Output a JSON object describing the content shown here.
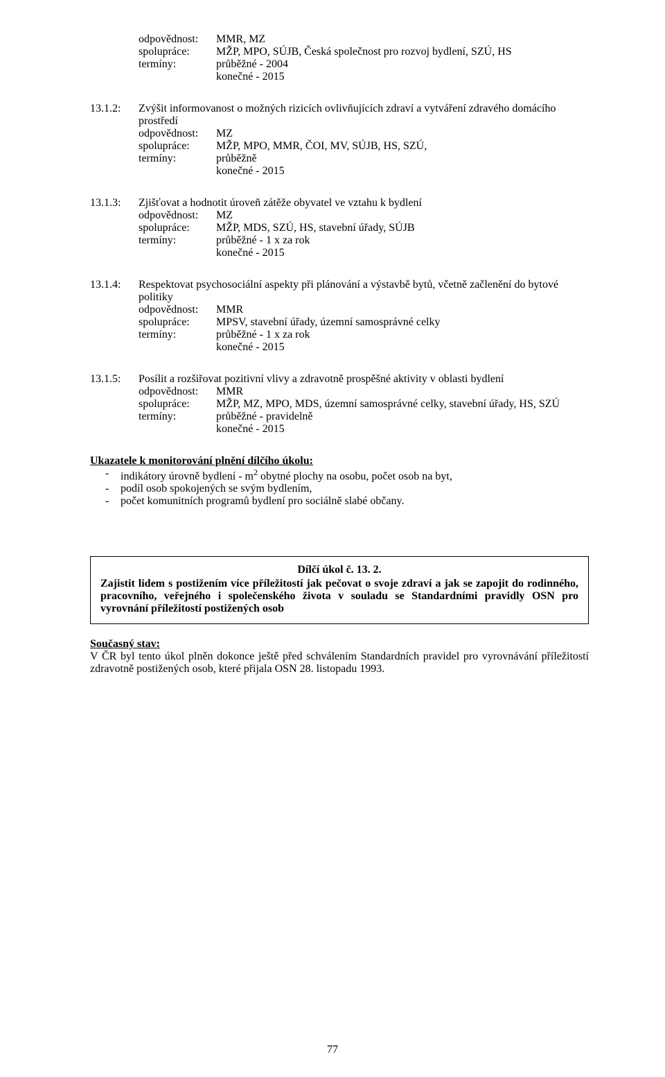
{
  "page_number": "77",
  "top_block": {
    "rows": [
      {
        "label": "odpovědnost:",
        "value": "MMR, MZ"
      },
      {
        "label": "spolupráce:",
        "value": "MŽP, MPO, SÚJB, Česká společnost pro rozvoj bydlení, SZÚ, HS"
      },
      {
        "label": "termíny:",
        "value": "průběžné - 2004"
      }
    ],
    "cont": "konečné - 2015"
  },
  "items": [
    {
      "num": "13.1.2:",
      "lead": "Zvýšit informovanost o možných rizicích ovlivňujících zdraví a vytváření zdravého domácího prostředí",
      "rows": [
        {
          "label": "odpovědnost:",
          "value": "MZ"
        },
        {
          "label": "spolupráce:",
          "value": "MŽP, MPO, MMR, ČOI, MV, SÚJB, HS, SZÚ,"
        },
        {
          "label": "termíny:",
          "value": "průběžně"
        }
      ],
      "cont": "konečné - 2015"
    },
    {
      "num": "13.1.3:",
      "lead": "Zjišťovat a hodnotit úroveň zátěže obyvatel ve vztahu k bydlení",
      "rows": [
        {
          "label": "odpovědnost:",
          "value": "MZ"
        },
        {
          "label": "spolupráce:",
          "value": "MŽP, MDS,  SZÚ, HS, stavební úřady, SÚJB"
        },
        {
          "label": "termíny:",
          "value": "průběžné - 1 x za rok"
        }
      ],
      "cont": "konečné - 2015"
    },
    {
      "num": "13.1.4:",
      "lead": "Respektovat psychosociální aspekty při plánování a výstavbě bytů, včetně začlenění do bytové politiky",
      "rows": [
        {
          "label": "odpovědnost:",
          "value": "MMR"
        },
        {
          "label": "spolupráce:",
          "value": "MPSV, stavební úřady, územní samosprávné celky"
        },
        {
          "label": "termíny:",
          "value": "průběžné - 1 x za rok"
        }
      ],
      "cont": "konečné - 2015"
    },
    {
      "num": "13.1.5:",
      "lead": "Posílit a rozšiřovat pozitivní vlivy a zdravotně prospěšné aktivity v oblasti bydlení",
      "rows": [
        {
          "label": "odpovědnost:",
          "value": "MMR"
        },
        {
          "label": "spolupráce:",
          "value": "MŽP, MZ, MPO, MDS, územní samosprávné celky, stavební úřady, HS, SZÚ"
        },
        {
          "label": "termíny:",
          "value": "průběžné - pravidelně"
        }
      ],
      "cont": "konečné - 2015"
    }
  ],
  "ukazatele": {
    "heading": "Ukazatele k monitorování plnění dílčího úkolu:",
    "items": [
      {
        "pre": "indikátory úrovně bydlení - m",
        "sup": "2",
        "post": " obytné plochy na osobu, počet osob  na byt,"
      },
      {
        "pre": "podíl osob spokojených se svým bydlením,",
        "sup": "",
        "post": ""
      },
      {
        "pre": "počet komunitních programů bydlení pro sociálně slabé občany.",
        "sup": "",
        "post": ""
      }
    ]
  },
  "box": {
    "title": "Dílčí úkol č. 13. 2.",
    "text": "Zajistit lidem s postižením více příležitostí jak pečovat o svoje zdraví a jak se zapojit do rodinného, pracovního, veřejného i společenského života v souladu se Standardními pravidly OSN pro vyrovnání příležitostí postižených osob"
  },
  "stav": {
    "heading": "Současný stav:",
    "text": "V ČR byl tento úkol plněn dokonce ještě před schválením Standardních pravidel pro vyrovnávání příležitostí zdravotně postižených osob, které přijala OSN 28. listopadu 1993."
  }
}
